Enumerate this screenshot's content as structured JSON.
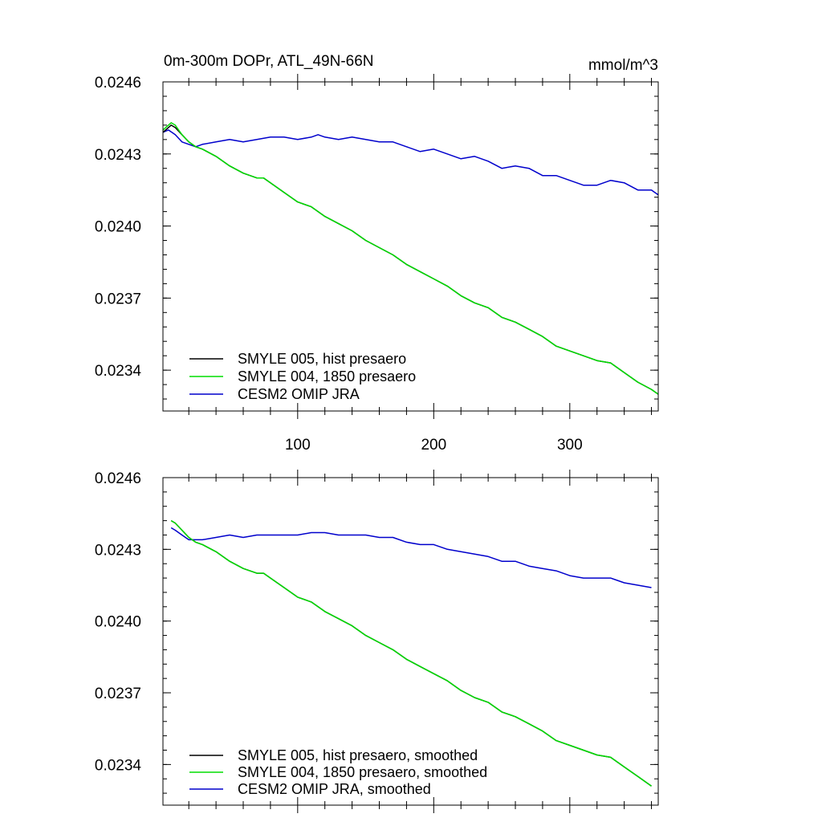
{
  "chart_data": [
    {
      "type": "line",
      "title": "0m-300m DOPr, ATL_49N-66N",
      "units": "mmol/m^3",
      "xlim": [
        1,
        365
      ],
      "ylim": [
        0.02323,
        0.0246
      ],
      "yticks": [
        "0.0246",
        "0.0243",
        "0.0240",
        "0.0237",
        "0.0234"
      ],
      "xticks": [
        "100",
        "200",
        "300"
      ],
      "legend_position": "bottom-left",
      "series": [
        {
          "name": "SMYLE 005, hist presaero",
          "color": "#000000",
          "x": [
            1,
            5,
            7,
            10,
            15,
            20,
            25,
            30,
            40,
            50,
            60,
            70,
            75,
            80,
            90,
            100,
            110,
            120,
            130,
            140,
            150,
            160,
            170,
            180,
            190,
            200,
            210,
            220,
            230,
            240,
            250,
            260,
            270,
            280,
            290,
            300,
            310,
            320,
            330,
            340,
            350,
            360,
            365
          ],
          "y": [
            0.02439,
            0.02441,
            0.02442,
            0.02441,
            0.02438,
            0.02435,
            0.02433,
            0.02432,
            0.02429,
            0.02425,
            0.02422,
            0.0242,
            0.0242,
            0.02418,
            0.02414,
            0.0241,
            0.02408,
            0.02404,
            0.02401,
            0.02398,
            0.02394,
            0.02391,
            0.02388,
            0.02384,
            0.02381,
            0.02378,
            0.02375,
            0.02371,
            0.02368,
            0.02366,
            0.02362,
            0.0236,
            0.02357,
            0.02354,
            0.0235,
            0.02348,
            0.02346,
            0.02344,
            0.02343,
            0.02339,
            0.02335,
            0.02332,
            0.0233
          ]
        },
        {
          "name": "SMYLE 004, 1850 presaero",
          "color": "#00dd00",
          "x": [
            1,
            5,
            7,
            10,
            15,
            20,
            25,
            30,
            40,
            50,
            60,
            70,
            75,
            80,
            90,
            100,
            110,
            120,
            130,
            140,
            150,
            160,
            170,
            180,
            190,
            200,
            210,
            220,
            230,
            240,
            250,
            260,
            270,
            280,
            290,
            300,
            310,
            320,
            330,
            340,
            350,
            360,
            365
          ],
          "y": [
            0.0244,
            0.02442,
            0.02443,
            0.02442,
            0.02438,
            0.02435,
            0.02433,
            0.02432,
            0.02429,
            0.02425,
            0.02422,
            0.0242,
            0.0242,
            0.02418,
            0.02414,
            0.0241,
            0.02408,
            0.02404,
            0.02401,
            0.02398,
            0.02394,
            0.02391,
            0.02388,
            0.02384,
            0.02381,
            0.02378,
            0.02375,
            0.02371,
            0.02368,
            0.02366,
            0.02362,
            0.0236,
            0.02357,
            0.02354,
            0.0235,
            0.02348,
            0.02346,
            0.02344,
            0.02343,
            0.02339,
            0.02335,
            0.02332,
            0.0233
          ]
        },
        {
          "name": "CESM2 OMIP JRA",
          "color": "#0000cc",
          "x": [
            1,
            5,
            10,
            15,
            20,
            25,
            30,
            40,
            50,
            60,
            70,
            80,
            90,
            100,
            110,
            115,
            120,
            130,
            140,
            150,
            160,
            170,
            180,
            190,
            200,
            210,
            220,
            230,
            240,
            250,
            260,
            270,
            280,
            290,
            300,
            310,
            320,
            330,
            340,
            350,
            360,
            365
          ],
          "y": [
            0.02439,
            0.0244,
            0.02438,
            0.02435,
            0.02434,
            0.02433,
            0.02434,
            0.02435,
            0.02436,
            0.02435,
            0.02436,
            0.02437,
            0.02437,
            0.02436,
            0.02437,
            0.02438,
            0.02437,
            0.02436,
            0.02437,
            0.02436,
            0.02435,
            0.02435,
            0.02433,
            0.02431,
            0.02432,
            0.0243,
            0.02428,
            0.02429,
            0.02427,
            0.02424,
            0.02425,
            0.02424,
            0.02421,
            0.02421,
            0.02419,
            0.02417,
            0.02417,
            0.02419,
            0.02418,
            0.02415,
            0.02415,
            0.02413
          ]
        }
      ]
    },
    {
      "type": "line",
      "xlim": [
        1,
        365
      ],
      "ylim": [
        0.02323,
        0.0246
      ],
      "yticks": [
        "0.0246",
        "0.0243",
        "0.0240",
        "0.0237",
        "0.0234"
      ],
      "legend_position": "bottom-left",
      "series": [
        {
          "name": "SMYLE 005, hist presaero, smoothed",
          "color": "#000000",
          "x": [
            7,
            10,
            15,
            20,
            25,
            30,
            40,
            50,
            60,
            70,
            75,
            80,
            90,
            100,
            110,
            120,
            130,
            140,
            150,
            160,
            170,
            180,
            190,
            200,
            210,
            220,
            230,
            240,
            250,
            260,
            270,
            280,
            290,
            300,
            310,
            320,
            330,
            340,
            350,
            360
          ],
          "y": [
            0.02442,
            0.02441,
            0.02438,
            0.02435,
            0.02433,
            0.02432,
            0.02429,
            0.02425,
            0.02422,
            0.0242,
            0.0242,
            0.02418,
            0.02414,
            0.0241,
            0.02408,
            0.02404,
            0.02401,
            0.02398,
            0.02394,
            0.02391,
            0.02388,
            0.02384,
            0.02381,
            0.02378,
            0.02375,
            0.02371,
            0.02368,
            0.02366,
            0.02362,
            0.0236,
            0.02357,
            0.02354,
            0.0235,
            0.02348,
            0.02346,
            0.02344,
            0.02343,
            0.02339,
            0.02335,
            0.02331
          ]
        },
        {
          "name": "SMYLE 004, 1850 presaero, smoothed",
          "color": "#00dd00",
          "x": [
            7,
            10,
            15,
            20,
            25,
            30,
            40,
            50,
            60,
            70,
            75,
            80,
            90,
            100,
            110,
            120,
            130,
            140,
            150,
            160,
            170,
            180,
            190,
            200,
            210,
            220,
            230,
            240,
            250,
            260,
            270,
            280,
            290,
            300,
            310,
            320,
            330,
            340,
            350,
            360
          ],
          "y": [
            0.02442,
            0.02441,
            0.02438,
            0.02435,
            0.02433,
            0.02432,
            0.02429,
            0.02425,
            0.02422,
            0.0242,
            0.0242,
            0.02418,
            0.02414,
            0.0241,
            0.02408,
            0.02404,
            0.02401,
            0.02398,
            0.02394,
            0.02391,
            0.02388,
            0.02384,
            0.02381,
            0.02378,
            0.02375,
            0.02371,
            0.02368,
            0.02366,
            0.02362,
            0.0236,
            0.02357,
            0.02354,
            0.0235,
            0.02348,
            0.02346,
            0.02344,
            0.02343,
            0.02339,
            0.02335,
            0.02331
          ]
        },
        {
          "name": "CESM2 OMIP JRA, smoothed",
          "color": "#0000cc",
          "x": [
            7,
            10,
            15,
            20,
            25,
            30,
            40,
            50,
            60,
            70,
            80,
            90,
            100,
            110,
            115,
            120,
            130,
            140,
            150,
            160,
            170,
            180,
            190,
            200,
            210,
            220,
            230,
            240,
            250,
            260,
            270,
            280,
            290,
            300,
            310,
            320,
            330,
            340,
            350,
            360
          ],
          "y": [
            0.02439,
            0.02438,
            0.02436,
            0.02434,
            0.02434,
            0.02434,
            0.02435,
            0.02436,
            0.02435,
            0.02436,
            0.02436,
            0.02436,
            0.02436,
            0.02437,
            0.02437,
            0.02437,
            0.02436,
            0.02436,
            0.02436,
            0.02435,
            0.02435,
            0.02433,
            0.02432,
            0.02432,
            0.0243,
            0.02429,
            0.02428,
            0.02427,
            0.02425,
            0.02425,
            0.02423,
            0.02422,
            0.02421,
            0.02419,
            0.02418,
            0.02418,
            0.02418,
            0.02416,
            0.02415,
            0.02414
          ]
        }
      ]
    }
  ]
}
